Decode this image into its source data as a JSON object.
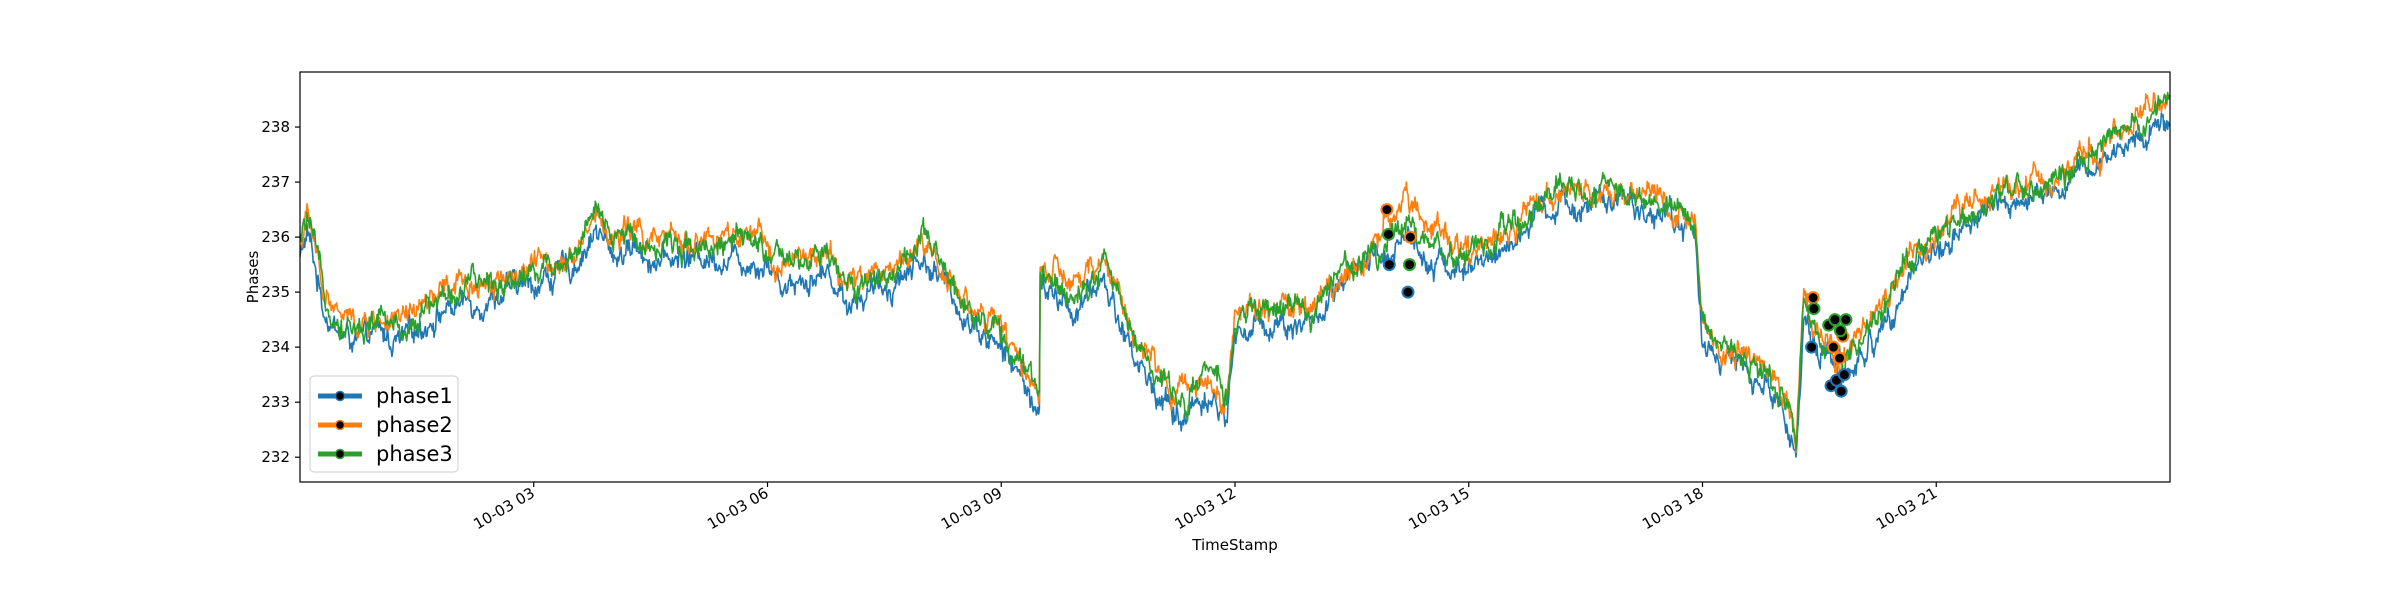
{
  "chart_data": {
    "type": "line",
    "title": "",
    "xlabel": "TimeStamp",
    "ylabel": "Phases",
    "xlim_hours": [
      0.0,
      24.0
    ],
    "ylim": [
      231.55,
      239.0
    ],
    "x_ticks": [
      {
        "value": 3,
        "label": "10-03 03"
      },
      {
        "value": 6,
        "label": "10-03 06"
      },
      {
        "value": 9,
        "label": "10-03 09"
      },
      {
        "value": 12,
        "label": "10-03 12"
      },
      {
        "value": 15,
        "label": "10-03 15"
      },
      {
        "value": 18,
        "label": "10-03 18"
      },
      {
        "value": 21,
        "label": "10-03 21"
      }
    ],
    "y_ticks": [
      232,
      233,
      234,
      235,
      236,
      237,
      238
    ],
    "grid": false,
    "legend_position": "lower-left",
    "series": [
      {
        "name": "phase1",
        "color": "#1f77b4",
        "offset": -0.25
      },
      {
        "name": "phase2",
        "color": "#ff7f0e",
        "offset": 0.05
      },
      {
        "name": "phase3",
        "color": "#2ca02c",
        "offset": 0.0
      }
    ],
    "baseline": {
      "hour": [
        0.0,
        0.1,
        0.3,
        0.5,
        0.8,
        1.0,
        1.3,
        1.5,
        1.8,
        2.0,
        2.5,
        3.0,
        3.5,
        3.8,
        4.0,
        4.3,
        4.6,
        5.0,
        5.5,
        6.0,
        6.2,
        6.4,
        6.8,
        7.0,
        7.5,
        8.0,
        8.5,
        9.0,
        9.3,
        9.49,
        9.5,
        9.6,
        10.0,
        10.3,
        10.7,
        11.0,
        11.3,
        11.6,
        11.9,
        12.0,
        12.5,
        13.0,
        13.5,
        13.9,
        14.2,
        14.6,
        15.0,
        15.5,
        16.0,
        16.5,
        17.0,
        17.5,
        17.9,
        18.0,
        18.2,
        18.6,
        19.0,
        19.2,
        19.3,
        19.5,
        19.8,
        20.2,
        20.6,
        21.0,
        21.5,
        22.0,
        22.5,
        23.0,
        23.5,
        24.0
      ],
      "value": [
        235.9,
        236.3,
        235.0,
        234.5,
        234.3,
        234.5,
        234.3,
        234.6,
        234.9,
        235.0,
        235.2,
        235.4,
        235.7,
        236.4,
        235.9,
        236.1,
        235.8,
        235.9,
        235.9,
        235.8,
        235.4,
        235.5,
        235.6,
        235.1,
        235.3,
        235.9,
        234.9,
        234.2,
        233.6,
        233.0,
        235.4,
        235.3,
        235.0,
        235.6,
        234.2,
        233.5,
        233.0,
        233.5,
        233.1,
        234.5,
        234.7,
        234.7,
        235.5,
        235.9,
        236.3,
        235.8,
        235.6,
        236.1,
        236.7,
        236.9,
        236.8,
        236.7,
        236.3,
        234.5,
        234.0,
        233.8,
        233.2,
        232.3,
        234.8,
        234.2,
        233.7,
        234.3,
        235.5,
        236.0,
        236.6,
        236.9,
        237.0,
        237.5,
        238.0,
        238.4
      ],
      "noise_amplitude": 0.25
    },
    "markers": {
      "phase1": [
        {
          "hour": 13.98,
          "value": 235.5
        },
        {
          "hour": 14.22,
          "value": 235.0
        },
        {
          "hour": 19.4,
          "value": 234.0
        },
        {
          "hour": 19.65,
          "value": 233.3
        },
        {
          "hour": 19.72,
          "value": 233.4
        },
        {
          "hour": 19.78,
          "value": 233.2
        },
        {
          "hour": 19.82,
          "value": 233.5
        }
      ],
      "phase2": [
        {
          "hour": 13.95,
          "value": 236.5
        },
        {
          "hour": 14.25,
          "value": 236.0
        },
        {
          "hour": 19.42,
          "value": 234.9
        },
        {
          "hour": 19.68,
          "value": 234.0
        },
        {
          "hour": 19.76,
          "value": 233.8
        },
        {
          "hour": 19.8,
          "value": 234.2
        }
      ],
      "phase3": [
        {
          "hour": 13.97,
          "value": 236.05
        },
        {
          "hour": 14.24,
          "value": 235.5
        },
        {
          "hour": 19.43,
          "value": 234.7
        },
        {
          "hour": 19.62,
          "value": 234.4
        },
        {
          "hour": 19.7,
          "value": 234.5
        },
        {
          "hour": 19.77,
          "value": 234.3
        },
        {
          "hour": 19.84,
          "value": 234.5
        }
      ]
    }
  }
}
